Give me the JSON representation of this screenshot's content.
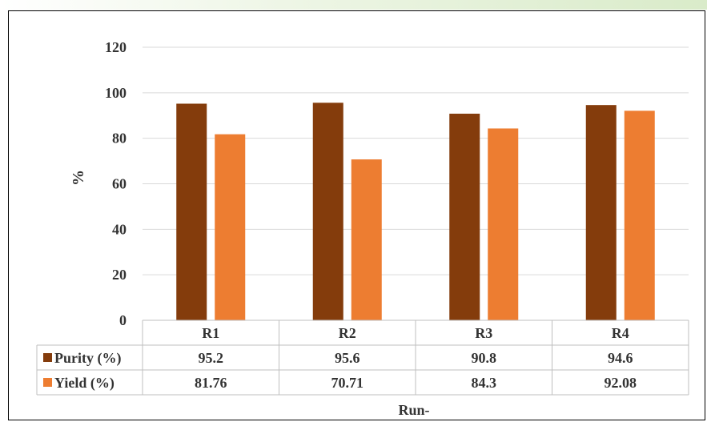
{
  "chart_data": {
    "type": "bar",
    "categories": [
      "R1",
      "R2",
      "R3",
      "R4"
    ],
    "series": [
      {
        "name": "Purity (%)",
        "values": [
          95.2,
          95.6,
          90.8,
          94.6
        ],
        "color": "#843C0C"
      },
      {
        "name": "Yield (%)",
        "values": [
          81.76,
          70.71,
          84.3,
          92.08
        ],
        "color": "#ED7D31"
      }
    ],
    "table_values": [
      [
        "95.2",
        "95.6",
        "90.8",
        "94.6"
      ],
      [
        "81.76",
        "70.71",
        "84.3",
        "92.08"
      ]
    ],
    "yticks": [
      "0",
      "20",
      "40",
      "60",
      "80",
      "100",
      "120"
    ],
    "ylim": [
      0,
      120
    ],
    "ylabel": "%",
    "xlabel": "Run-",
    "grid": true,
    "legend": "data-table-left",
    "gridline_color": "#d9d9d9",
    "table_line_color": "#bfbfbf"
  }
}
